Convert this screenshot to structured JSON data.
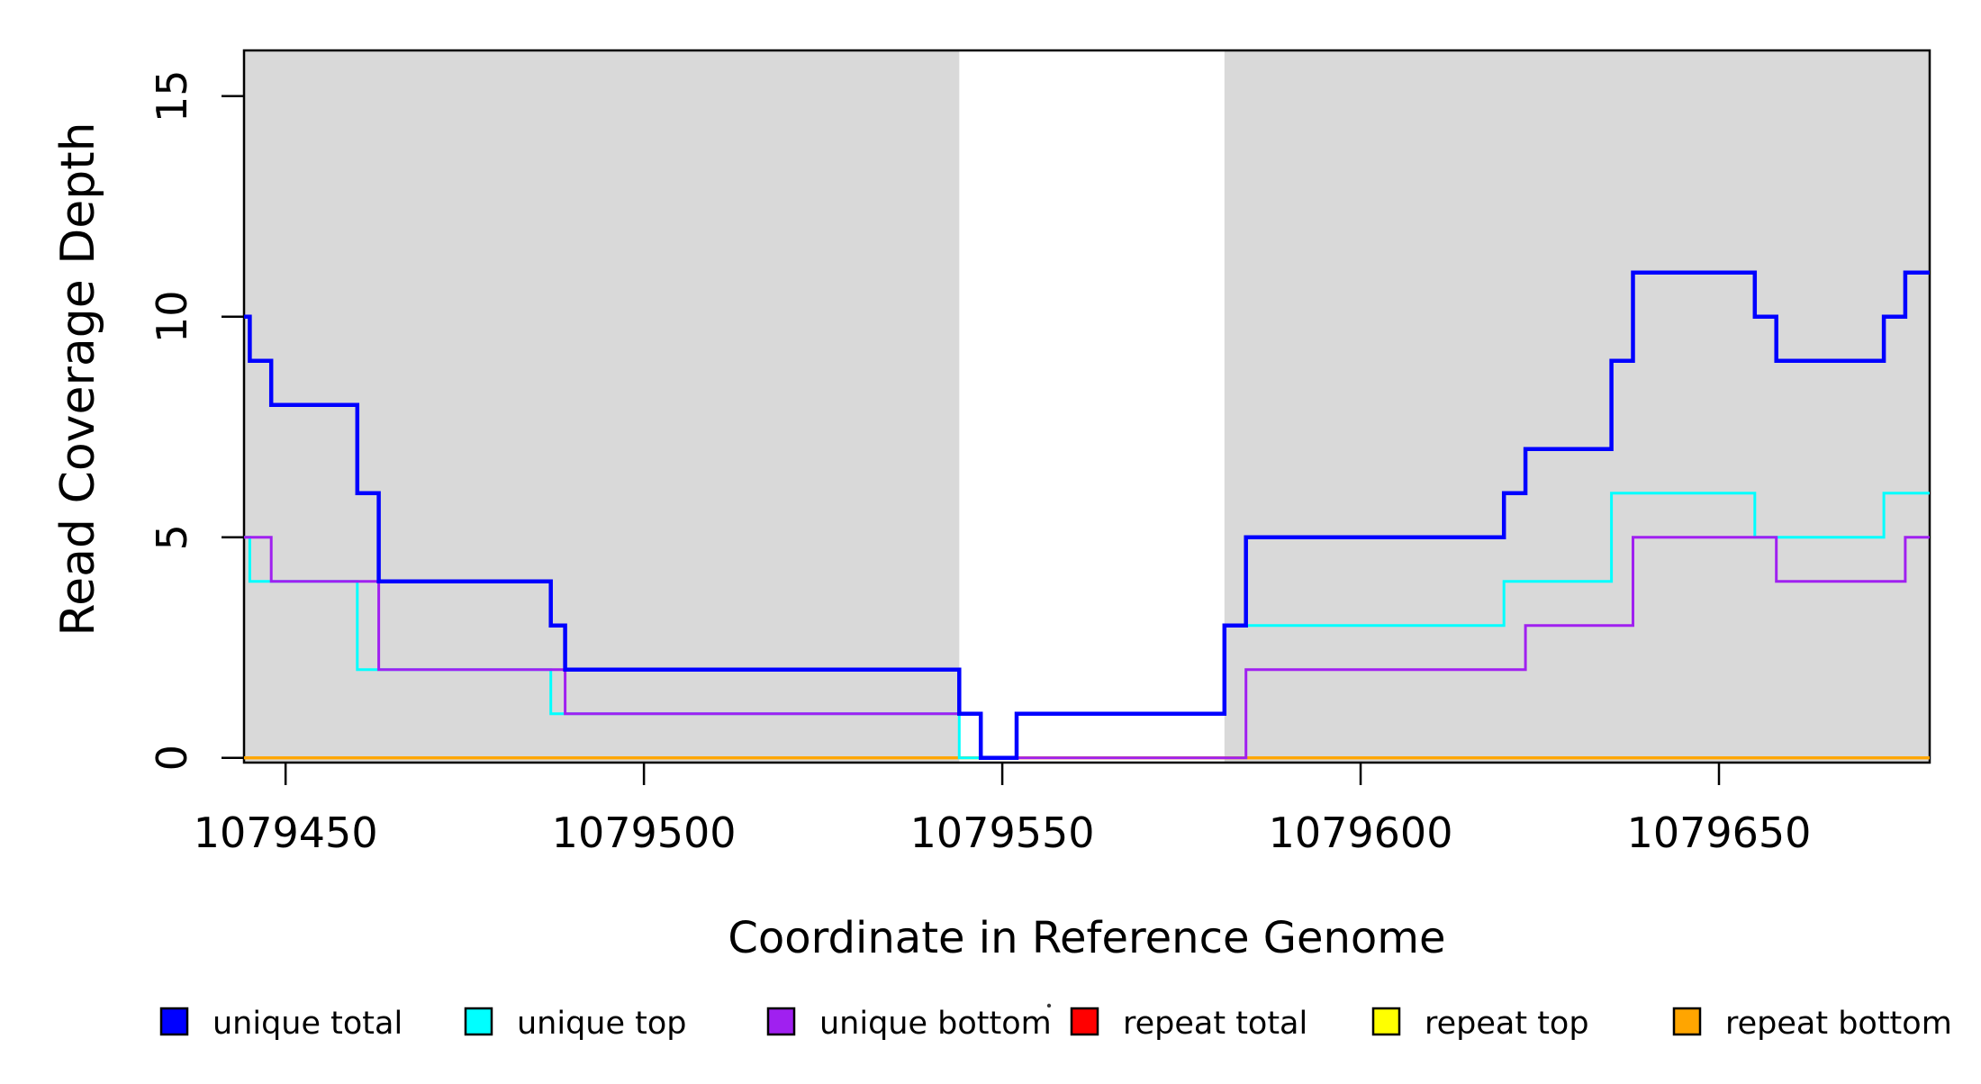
{
  "chart_data": {
    "type": "line",
    "step_mode": "hv",
    "title": "",
    "xlabel": "Coordinate in Reference Genome",
    "ylabel": "Read Coverage Depth",
    "xlim": [
      1079444.2,
      1079679.4
    ],
    "ylim": [
      0,
      16
    ],
    "grid": false,
    "legend_position": "bottom",
    "background": "#FFFFFF",
    "shaded_region_color": "#D9D9D9",
    "axis_color": "#000000",
    "x_tick_values": [
      1079450,
      1079500,
      1079550,
      1079600,
      1079650
    ],
    "x_ticks": [
      "1079450",
      "1079500",
      "1079550",
      "1079600",
      "1079650"
    ],
    "y_tick_values": [
      0,
      5,
      10,
      15
    ],
    "y_ticks": [
      "0",
      "5",
      "10",
      "15"
    ],
    "shaded_regions": [
      {
        "start": 1079444.2,
        "end": 1079544
      },
      {
        "start": 1079581,
        "end": 1079679.4
      }
    ],
    "series": [
      {
        "name": "unique total",
        "color": "#0000FF",
        "line_width": 4.5,
        "start_value": 10,
        "steps": [
          [
            1079445,
            9
          ],
          [
            1079448,
            8
          ],
          [
            1079460,
            6
          ],
          [
            1079463,
            4
          ],
          [
            1079487,
            3
          ],
          [
            1079489,
            2
          ],
          [
            1079544,
            1
          ],
          [
            1079547,
            0
          ],
          [
            1079552,
            1
          ],
          [
            1079581,
            3
          ],
          [
            1079584,
            5
          ],
          [
            1079620,
            6
          ],
          [
            1079623,
            7
          ],
          [
            1079635,
            9
          ],
          [
            1079638,
            11
          ],
          [
            1079655,
            10
          ],
          [
            1079658,
            9
          ],
          [
            1079673,
            10
          ],
          [
            1079676,
            11
          ]
        ]
      },
      {
        "name": "unique top",
        "color": "#00FFFF",
        "line_width": 3,
        "start_value": 5,
        "steps": [
          [
            1079445,
            4
          ],
          [
            1079460,
            2
          ],
          [
            1079487,
            1
          ],
          [
            1079544,
            0
          ],
          [
            1079552,
            1
          ],
          [
            1079581,
            3
          ],
          [
            1079620,
            4
          ],
          [
            1079635,
            6
          ],
          [
            1079655,
            5
          ],
          [
            1079673,
            6
          ]
        ]
      },
      {
        "name": "unique bottom",
        "color": "#A020F0",
        "line_width": 3,
        "start_value": 5,
        "steps": [
          [
            1079448,
            4
          ],
          [
            1079463,
            2
          ],
          [
            1079489,
            1
          ],
          [
            1079547,
            0
          ],
          [
            1079584,
            2
          ],
          [
            1079623,
            3
          ],
          [
            1079638,
            5
          ],
          [
            1079658,
            4
          ],
          [
            1079676,
            5
          ]
        ]
      },
      {
        "name": "repeat total",
        "color": "#FF0000",
        "line_width": 3,
        "start_value": 0,
        "steps": []
      },
      {
        "name": "repeat top",
        "color": "#FFFF00",
        "line_width": 3,
        "start_value": 0,
        "steps": []
      },
      {
        "name": "repeat bottom",
        "color": "#FFA500",
        "line_width": 3,
        "start_value": 0,
        "steps": []
      }
    ],
    "draw_order": [
      3,
      4,
      5,
      1,
      2,
      0
    ]
  },
  "legend": {
    "items": [
      {
        "label": "unique total",
        "color": "#0000FF"
      },
      {
        "label": "unique top",
        "color": "#00FFFF"
      },
      {
        "label": "unique bottom",
        "color": "#A020F0"
      },
      {
        "label": "repeat total",
        "color": "#FF0000"
      },
      {
        "label": "repeat top",
        "color": "#FFFF00"
      },
      {
        "label": "repeat bottom",
        "color": "#FFA500"
      }
    ]
  }
}
